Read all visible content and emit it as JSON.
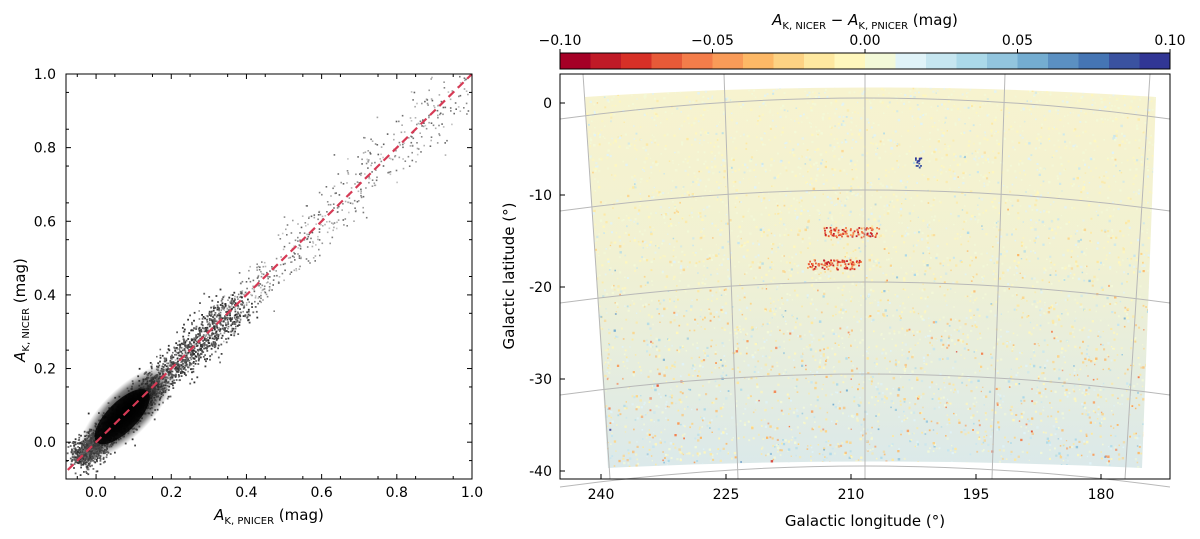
{
  "chart_data": [
    {
      "type": "scatter",
      "title": "",
      "xlabel_main": "A",
      "xlabel_sub": "K, PNICER",
      "xlabel_unit": " (mag)",
      "ylabel_main": "A",
      "ylabel_sub": "K, NICER",
      "ylabel_unit": " (mag)",
      "xlim": [
        -0.08,
        1.0
      ],
      "ylim": [
        -0.1,
        1.0
      ],
      "xticks": [
        0.0,
        0.2,
        0.4,
        0.6,
        0.8,
        1.0
      ],
      "xtick_labels": [
        "0.0",
        "0.2",
        "0.4",
        "0.6",
        "0.8",
        "1.0"
      ],
      "yticks": [
        0.0,
        0.2,
        0.4,
        0.6,
        0.8,
        1.0
      ],
      "ytick_labels": [
        "0.0",
        "0.2",
        "0.4",
        "0.6",
        "0.8",
        "1.0"
      ],
      "density_peak": {
        "x": 0.08,
        "y": 0.08
      },
      "density_ridge": [
        {
          "x": -0.05,
          "y": -0.05
        },
        {
          "x": 0.0,
          "y": 0.0
        },
        {
          "x": 0.1,
          "y": 0.1
        },
        {
          "x": 0.2,
          "y": 0.2
        },
        {
          "x": 0.3,
          "y": 0.3
        },
        {
          "x": 0.4,
          "y": 0.4
        },
        {
          "x": 0.5,
          "y": 0.5
        },
        {
          "x": 0.6,
          "y": 0.6
        },
        {
          "x": 0.7,
          "y": 0.7
        },
        {
          "x": 0.8,
          "y": 0.8
        },
        {
          "x": 0.95,
          "y": 0.95
        }
      ],
      "reference_line": {
        "name": "one-to-one",
        "from": [
          -0.1,
          -0.1
        ],
        "to": [
          1.0,
          1.0
        ],
        "color": "#d63a55",
        "style": "dashed"
      },
      "colormap": "greys"
    },
    {
      "type": "heatmap",
      "title": "",
      "colorbar_label_main": "A",
      "colorbar_label_sub1": "K, NICER",
      "colorbar_label_minus": " − ",
      "colorbar_label_sub2": "K, PNICER",
      "colorbar_label_unit": " (mag)",
      "colorbar_range": [
        -0.1,
        0.1
      ],
      "colorbar_ticks": [
        -0.1,
        -0.05,
        0.0,
        0.05,
        0.1
      ],
      "colorbar_tick_labels": [
        "−0.10",
        "−0.05",
        "0.00",
        "0.05",
        "0.10"
      ],
      "colormap": "RdYlBu",
      "colormap_bins": [
        "#a50026",
        "#c01a27",
        "#d73027",
        "#e75a38",
        "#f47d4a",
        "#f99b58",
        "#fdb866",
        "#fdd283",
        "#fee8a0",
        "#fff7bc",
        "#f3f9d8",
        "#e0f3f8",
        "#c6e6f0",
        "#abd9e9",
        "#92c5de",
        "#74add1",
        "#5b90c2",
        "#4575b4",
        "#3a52a0",
        "#313695"
      ],
      "xlabel": "Galactic longitude (°)",
      "ylabel": "Galactic latitude (°)",
      "xticks": [
        240,
        225,
        210,
        195,
        180
      ],
      "xtick_labels": [
        "240",
        "225",
        "210",
        "195",
        "180"
      ],
      "yticks": [
        0,
        -10,
        -20,
        -30,
        -40
      ],
      "ytick_labels": [
        "0",
        "-10",
        "-20",
        "-30",
        "-40"
      ],
      "lon_range": [
        178,
        242
      ],
      "lat_range": [
        -40,
        1
      ],
      "features": [
        {
          "name": "residual filament",
          "lon": 212,
          "lat": -17.5,
          "sign": "negative"
        },
        {
          "name": "residual streak",
          "lon": 210,
          "lat": -14,
          "sign": "negative"
        },
        {
          "name": "blue spot",
          "lon": 202,
          "lat": -6.5,
          "sign": "positive"
        }
      ]
    }
  ]
}
